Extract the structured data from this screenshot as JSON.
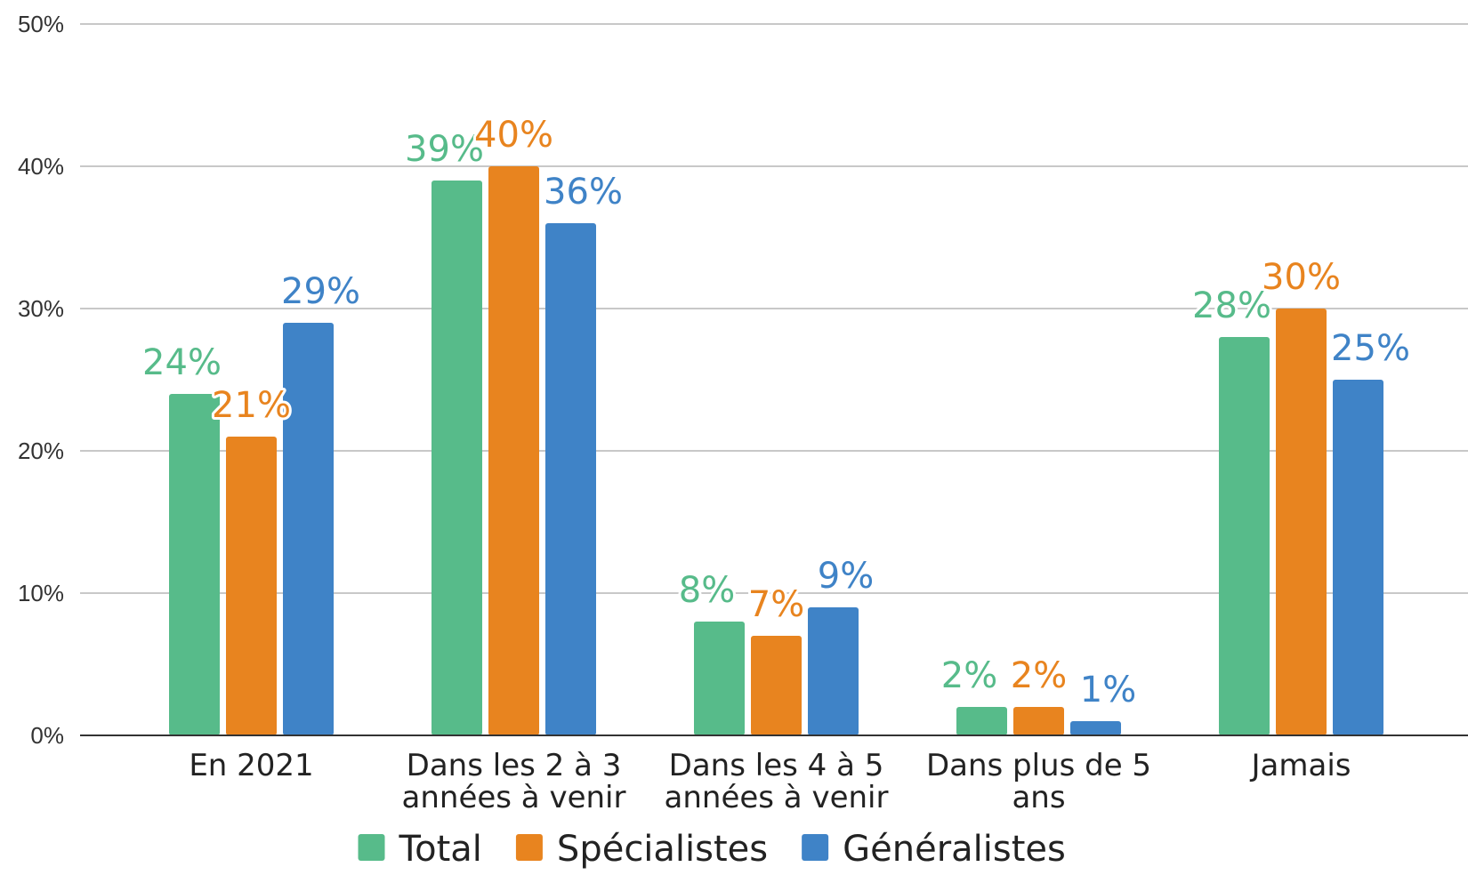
{
  "chart_data": {
    "type": "bar",
    "categories": [
      [
        "En 2021"
      ],
      [
        "Dans les 2 à 3",
        "années à venir"
      ],
      [
        "Dans les 4 à 5",
        "années à venir"
      ],
      [
        "Dans plus de 5",
        "ans"
      ],
      [
        "Jamais"
      ]
    ],
    "series": [
      {
        "name": "Total",
        "color": "#57bb8a",
        "values": [
          24,
          39,
          8,
          2,
          28
        ],
        "labels": [
          "24%",
          "39%",
          "8%",
          "2%",
          "28%"
        ]
      },
      {
        "name": "Spécialistes",
        "color": "#e8841f",
        "values": [
          21,
          40,
          7,
          2,
          30
        ],
        "labels": [
          "21%",
          "40%",
          "7%",
          "2%",
          "30%"
        ]
      },
      {
        "name": "Généralistes",
        "color": "#3f83c7",
        "values": [
          29,
          36,
          9,
          1,
          25
        ],
        "labels": [
          "29%",
          "36%",
          "9%",
          "1%",
          "25%"
        ]
      }
    ],
    "ylim": [
      0,
      50
    ],
    "yticks": [
      0,
      10,
      20,
      30,
      40,
      50
    ],
    "ytick_labels": [
      "0%",
      "10%",
      "20%",
      "30%",
      "40%",
      "50%"
    ],
    "grid": true,
    "legend_position": "bottom"
  }
}
